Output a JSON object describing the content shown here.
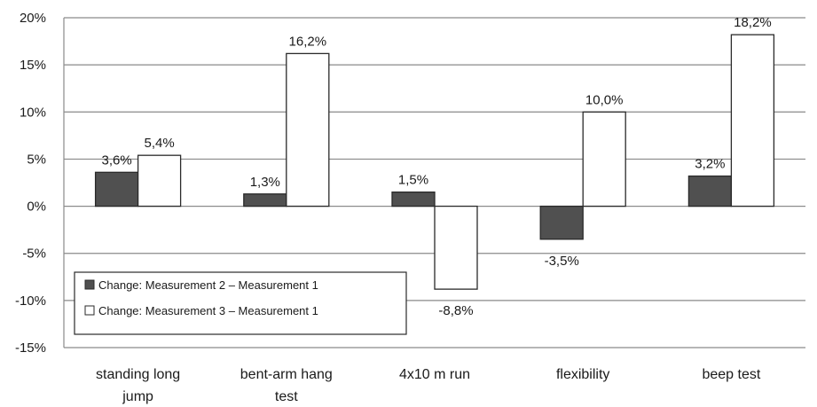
{
  "chart_data": {
    "type": "bar",
    "categories": [
      [
        "standing long",
        "jump"
      ],
      [
        "bent-arm hang",
        "test"
      ],
      [
        "4x10 m run"
      ],
      [
        "flexibility"
      ],
      [
        "beep test"
      ]
    ],
    "series": [
      {
        "name": "Change: Measurement 2 – Measurement 1",
        "color": "#505050",
        "values": [
          3.6,
          1.3,
          1.5,
          -3.5,
          3.2
        ],
        "labels": [
          "3,6%",
          "1,3%",
          "1,5%",
          "-3,5%",
          "3,2%"
        ]
      },
      {
        "name": "Change: Measurement 3 – Measurement 1",
        "color": "#ffffff",
        "values": [
          5.4,
          16.2,
          -8.8,
          10.0,
          18.2
        ],
        "labels": [
          "5,4%",
          "16,2%",
          "-8,8%",
          "10,0%",
          "18,2%"
        ]
      }
    ],
    "yticks": [
      20,
      15,
      10,
      5,
      0,
      -5,
      -10,
      -15
    ],
    "ytick_labels": [
      "20%",
      "15%",
      "10%",
      "5%",
      "0%",
      "-5%",
      "-10%",
      "-15%"
    ],
    "ylim": [
      -15,
      20
    ],
    "grid": true,
    "legend": "bottom-left"
  }
}
